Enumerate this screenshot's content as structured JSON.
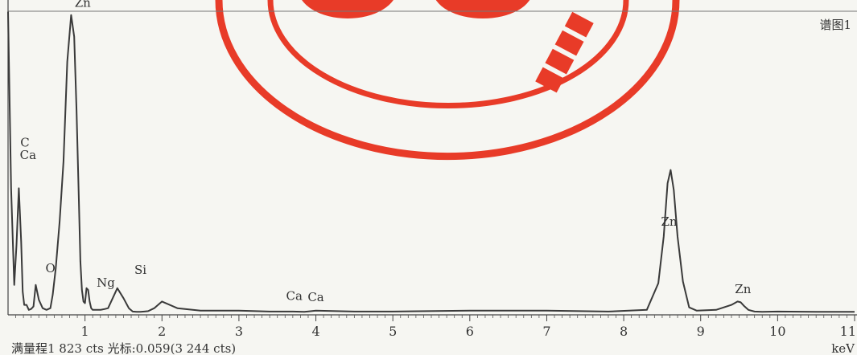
{
  "chart_data": {
    "type": "line",
    "title": "谱图1",
    "xlabel": "keV",
    "ylabel": "",
    "xlim": [
      0,
      11
    ],
    "ylim": [
      0,
      1823
    ],
    "x_ticks": [
      1,
      2,
      3,
      4,
      5,
      6,
      7,
      8,
      9,
      10,
      11
    ],
    "footer": "满量程1 823 cts 光标:0.059(3 244 cts)",
    "series": [
      {
        "x": [
          0.0,
          0.04,
          0.08,
          0.11,
          0.14,
          0.17,
          0.19,
          0.21,
          0.24,
          0.27,
          0.3,
          0.33,
          0.36,
          0.4,
          0.45,
          0.5,
          0.55,
          0.58,
          0.62,
          0.67,
          0.72,
          0.77,
          0.82,
          0.86,
          0.89,
          0.92,
          0.94,
          0.96,
          0.98,
          1.0,
          1.02,
          1.04,
          1.06,
          1.08,
          1.1,
          1.12,
          1.15,
          1.2,
          1.26,
          1.3,
          1.35,
          1.42,
          1.5,
          1.57,
          1.62,
          1.67,
          1.72,
          1.77,
          1.82,
          1.9,
          2.0,
          2.2,
          2.5,
          3.0,
          3.4,
          3.7,
          3.85,
          4.0,
          4.5,
          5.0,
          6.0,
          7.0,
          7.8,
          8.3,
          8.45,
          8.52,
          8.57,
          8.61,
          8.65,
          8.7,
          8.77,
          8.85,
          8.95,
          9.2,
          9.4,
          9.48,
          9.52,
          9.56,
          9.62,
          9.7,
          9.8,
          10.0,
          10.5,
          11.0
        ],
        "y": [
          1820,
          760,
          180,
          420,
          760,
          440,
          140,
          60,
          60,
          30,
          35,
          50,
          180,
          90,
          40,
          30,
          40,
          120,
          280,
          560,
          920,
          1520,
          1800,
          1670,
          1230,
          690,
          320,
          150,
          80,
          70,
          160,
          150,
          80,
          40,
          30,
          30,
          30,
          30,
          35,
          40,
          90,
          160,
          100,
          40,
          20,
          18,
          18,
          20,
          22,
          40,
          80,
          40,
          25,
          25,
          20,
          20,
          18,
          25,
          20,
          20,
          25,
          25,
          20,
          30,
          190,
          470,
          790,
          870,
          750,
          470,
          200,
          45,
          25,
          30,
          60,
          80,
          75,
          55,
          30,
          20,
          18,
          20,
          18,
          18
        ]
      }
    ],
    "annotations": [
      {
        "text": "C",
        "x": 0.22,
        "y": 1010
      },
      {
        "text": "Ca",
        "x": 0.26,
        "y": 935
      },
      {
        "text": "Zn",
        "x": 0.97,
        "y": 1850
      },
      {
        "text": "O",
        "x": 0.55,
        "y": 255
      },
      {
        "text": "Ng",
        "x": 1.27,
        "y": 170
      },
      {
        "text": "Si",
        "x": 1.72,
        "y": 245
      },
      {
        "text": "Ca",
        "x": 3.72,
        "y": 90
      },
      {
        "text": "Ca",
        "x": 4.0,
        "y": 82
      },
      {
        "text": "Zn",
        "x": 8.59,
        "y": 535
      },
      {
        "text": "Zn",
        "x": 9.55,
        "y": 130
      }
    ]
  }
}
